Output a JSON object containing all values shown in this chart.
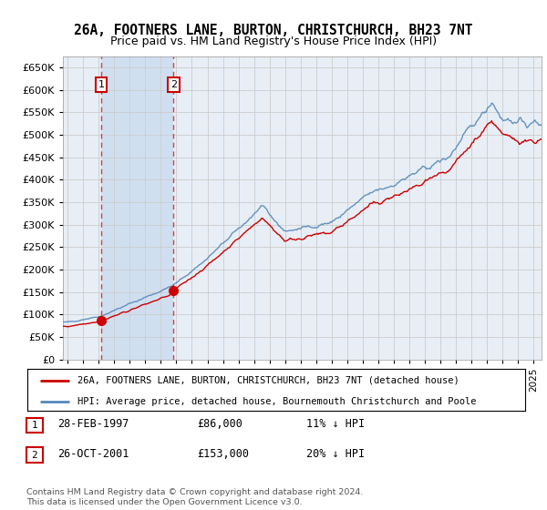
{
  "title1": "26A, FOOTNERS LANE, BURTON, CHRISTCHURCH, BH23 7NT",
  "title2": "Price paid vs. HM Land Registry's House Price Index (HPI)",
  "background_color": "#e8eef5",
  "highlight_color": "#d0dff0",
  "grid_color": "#cccccc",
  "hpi_color": "#5588bb",
  "price_color": "#cc0000",
  "marker_color": "#cc0000",
  "purchase1_date": 1997.16,
  "purchase1_price": 86000,
  "purchase2_date": 2001.82,
  "purchase2_price": 153000,
  "legend_label_price": "26A, FOOTNERS LANE, BURTON, CHRISTCHURCH, BH23 7NT (detached house)",
  "legend_label_hpi": "HPI: Average price, detached house, Bournemouth Christchurch and Poole",
  "annotation1_label": "1",
  "annotation2_label": "2",
  "table_row1": [
    "1",
    "28-FEB-1997",
    "£86,000",
    "11% ↓ HPI"
  ],
  "table_row2": [
    "2",
    "26-OCT-2001",
    "£153,000",
    "20% ↓ HPI"
  ],
  "footer": "Contains HM Land Registry data © Crown copyright and database right 2024.\nThis data is licensed under the Open Government Licence v3.0.",
  "ylim": [
    0,
    675000
  ],
  "xlim_start": 1994.7,
  "xlim_end": 2025.5
}
